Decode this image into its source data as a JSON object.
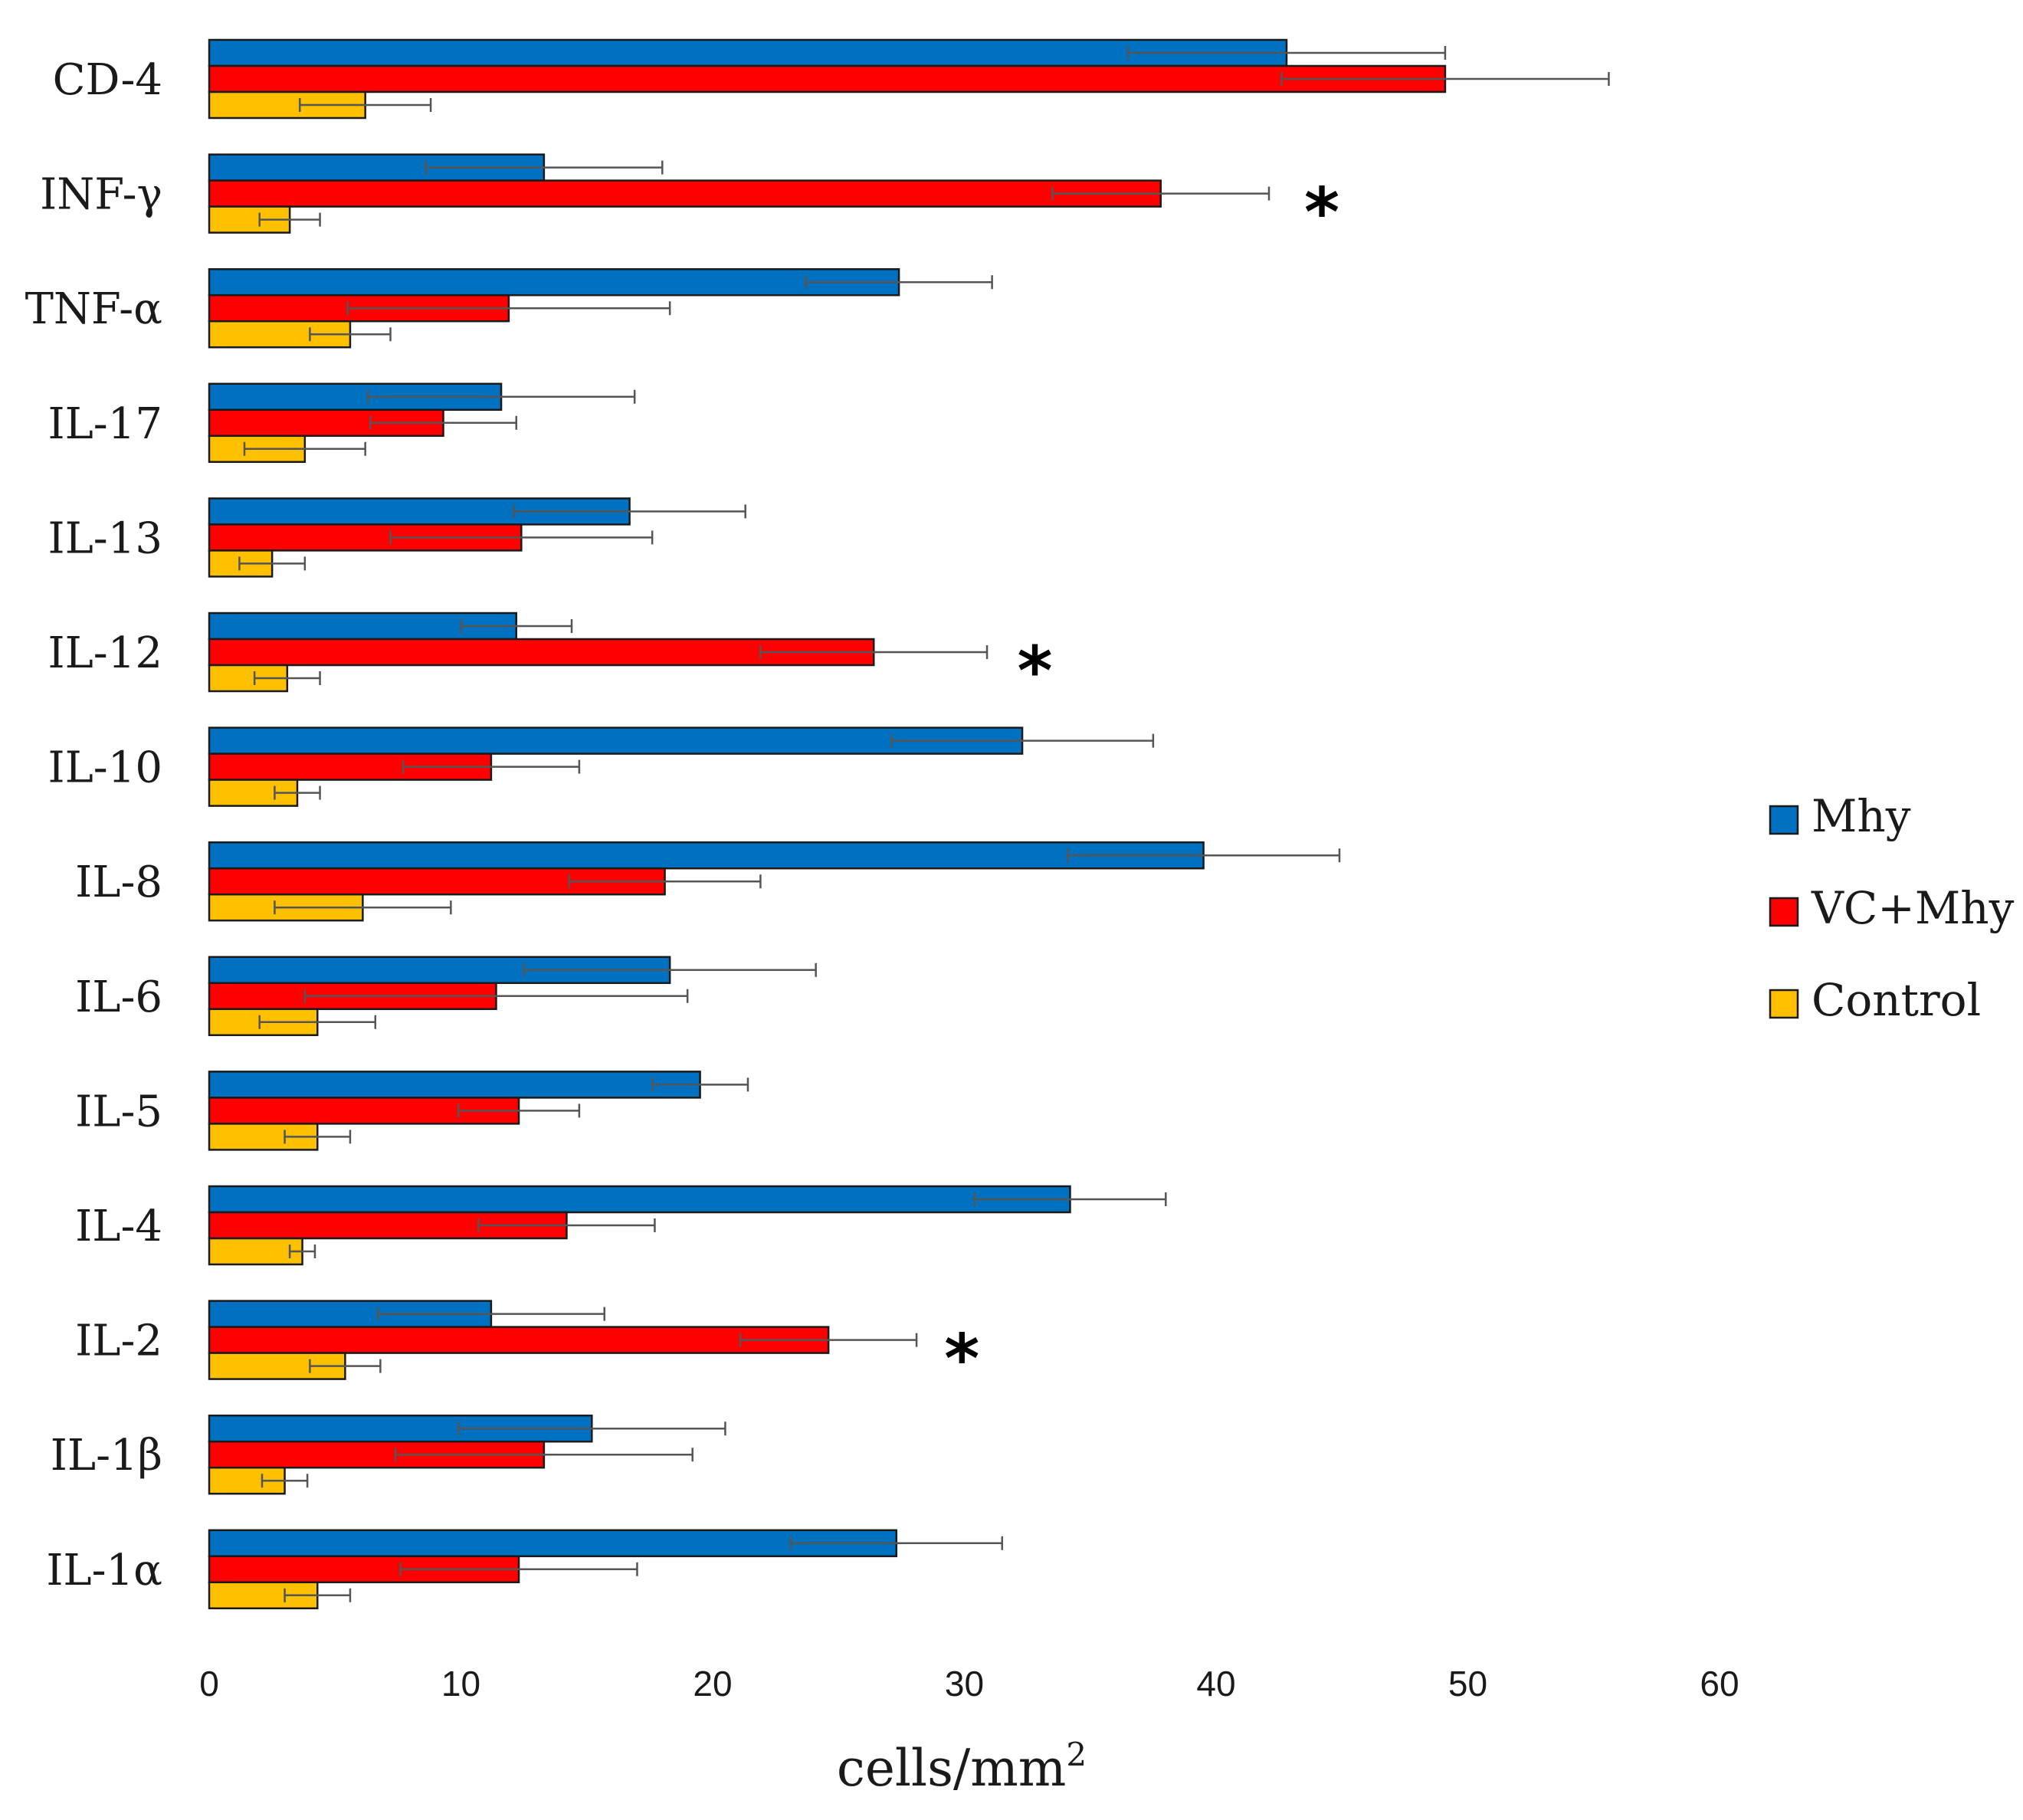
{
  "chart_data": {
    "type": "bar",
    "orientation": "horizontal",
    "title": "",
    "xlabel": "cells/mm",
    "xlabel_superscript": "2",
    "ylabel": "",
    "xlim": [
      0,
      60
    ],
    "xticks": [
      0,
      10,
      20,
      30,
      40,
      50,
      60
    ],
    "grid": false,
    "legend_position": "right",
    "categories": [
      "CD-4",
      "INF-γ",
      "TNF-α",
      "IL-17",
      "IL-13",
      "IL-12",
      "IL-10",
      "IL-8",
      "IL-6",
      "IL-5",
      "IL-4",
      "IL-2",
      "IL-1β",
      "IL-1α"
    ],
    "series": [
      {
        "name": "Mhy",
        "color": "#0070C0",
        "values": [
          42.8,
          13.3,
          27.4,
          11.6,
          16.7,
          12.2,
          32.3,
          39.5,
          18.3,
          19.5,
          34.2,
          11.2,
          15.2,
          27.3
        ],
        "errors": [
          6.3,
          4.7,
          3.7,
          5.3,
          4.6,
          2.2,
          5.2,
          5.4,
          5.8,
          1.9,
          3.8,
          4.5,
          5.3,
          4.2
        ]
      },
      {
        "name": "VC+Mhy",
        "color": "#FF0000",
        "values": [
          49.1,
          37.8,
          11.9,
          9.3,
          12.4,
          26.4,
          11.2,
          18.1,
          11.4,
          12.3,
          14.2,
          24.6,
          13.3,
          12.3
        ],
        "errors": [
          6.5,
          4.3,
          6.4,
          2.9,
          5.2,
          4.5,
          3.5,
          3.8,
          7.6,
          2.4,
          3.5,
          3.5,
          5.9,
          4.7
        ]
      },
      {
        "name": "Control",
        "color": "#FFC000",
        "values": [
          6.2,
          3.2,
          5.6,
          3.8,
          2.5,
          3.1,
          3.5,
          6.1,
          4.3,
          4.3,
          3.7,
          5.4,
          3.0,
          4.3
        ],
        "errors": [
          2.6,
          1.2,
          1.6,
          2.4,
          1.3,
          1.3,
          0.9,
          3.5,
          2.3,
          1.3,
          0.5,
          1.4,
          0.9,
          1.3
        ]
      }
    ],
    "annotations": [
      {
        "category": "INF-γ",
        "text": "*",
        "at_value": 44.2
      },
      {
        "category": "IL-12",
        "text": "*",
        "at_value": 32.8
      },
      {
        "category": "IL-2",
        "text": "*",
        "at_value": 29.9
      }
    ]
  }
}
